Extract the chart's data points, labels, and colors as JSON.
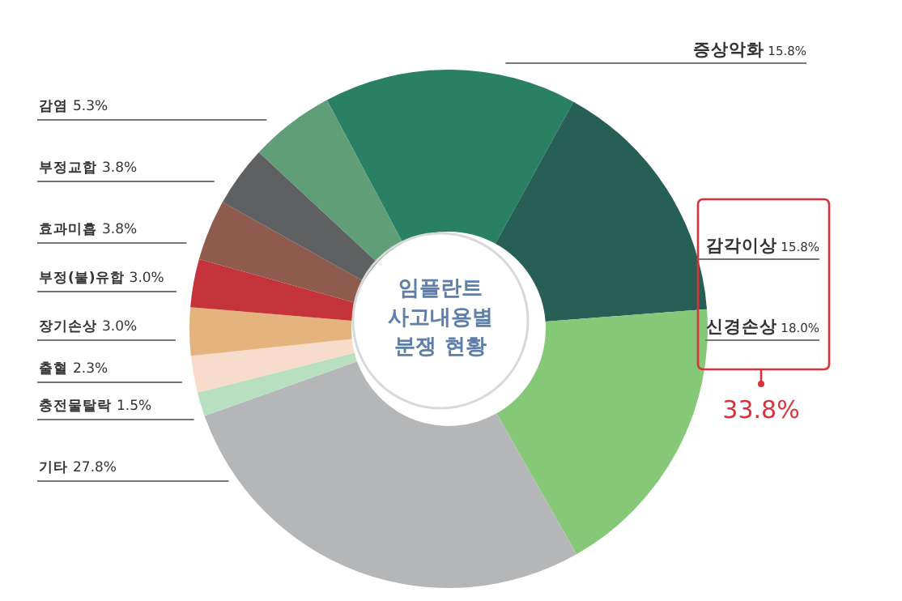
{
  "chart_data": {
    "type": "donut",
    "title": "임플란트\n사고내용별\n분쟁 현황",
    "categories": [
      "증상악화",
      "감각이상",
      "신경손상",
      "기타",
      "충전물탈락",
      "출혈",
      "장기손상",
      "부정(불)유합",
      "효과미흡",
      "부정교합",
      "감염"
    ],
    "values": [
      15.8,
      15.8,
      18.0,
      27.8,
      1.5,
      2.3,
      3.0,
      3.0,
      3.8,
      3.8,
      5.3
    ],
    "value_labels": [
      "15.8%",
      "15.8%",
      "18.0%",
      "27.8%",
      "1.5%",
      "2.3%",
      "3.0%",
      "3.0%",
      "3.8%",
      "3.8%",
      "5.3%"
    ],
    "colors": [
      "#2a8062",
      "#275e55",
      "#84c878",
      "#b5b6b8",
      "#b8dfc0",
      "#f7dccb",
      "#e5b37e",
      "#c4343a",
      "#8e5b4e",
      "#5e6062",
      "#5f9e76"
    ],
    "annotations": [
      "33.8%"
    ]
  }
}
